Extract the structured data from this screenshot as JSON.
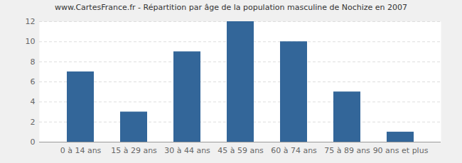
{
  "chart_data": {
    "type": "bar",
    "title": "www.CartesFrance.fr - Répartition par âge de la population masculine de Nochize en 2007",
    "categories": [
      "0 à 14 ans",
      "15 à 29 ans",
      "30 à 44 ans",
      "45 à 59 ans",
      "60 à 74 ans",
      "75 à 89 ans",
      "90 ans et plus"
    ],
    "values": [
      7,
      3,
      9,
      12,
      10,
      5,
      1
    ],
    "color": "#336699",
    "ylim": [
      0,
      12
    ],
    "yticks": [
      0,
      2,
      4,
      6,
      8,
      10,
      12
    ],
    "grid": true
  }
}
